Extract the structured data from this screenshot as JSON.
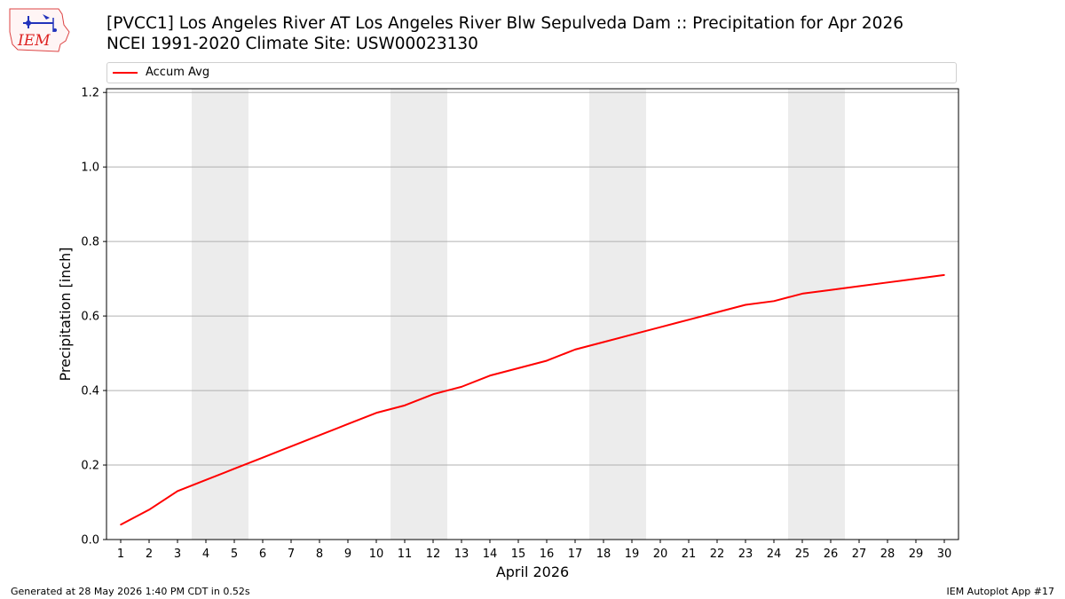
{
  "header": {
    "logo_text": "IEM",
    "title_line1": "[PVCC1] Los Angeles River  AT Los Angeles River Blw Sepulveda Dam :: Precipitation for Apr 2026",
    "title_line2": "NCEI 1991-2020 Climate Site: USW00023130"
  },
  "footer": {
    "generated": "Generated at 28 May 2026 1:40 PM CDT in 0.52s",
    "app": "IEM Autoplot App #17"
  },
  "colors": {
    "series": "#ff0000",
    "weekend_band": "#ececec",
    "grid": "#b0b0b0"
  },
  "chart_data": {
    "type": "line",
    "xlabel": "April 2026",
    "ylabel": "Precipitation [inch]",
    "xlim": [
      0.5,
      30.5
    ],
    "ylim": [
      0,
      1.21
    ],
    "yticks": [
      0.0,
      0.2,
      0.4,
      0.6,
      0.8,
      1.0,
      1.2
    ],
    "ytick_labels": [
      "0.0",
      "0.2",
      "0.4",
      "0.6",
      "0.8",
      "1.0",
      "1.2"
    ],
    "x": [
      1,
      2,
      3,
      4,
      5,
      6,
      7,
      8,
      9,
      10,
      11,
      12,
      13,
      14,
      15,
      16,
      17,
      18,
      19,
      20,
      21,
      22,
      23,
      24,
      25,
      26,
      27,
      28,
      29,
      30
    ],
    "grid": "y",
    "legend_position": "top",
    "shaded_bands": [
      [
        3.5,
        5.5
      ],
      [
        10.5,
        12.5
      ],
      [
        17.5,
        19.5
      ],
      [
        24.5,
        26.5
      ]
    ],
    "series": [
      {
        "name": "Accum Avg",
        "color": "#ff0000",
        "values": [
          0.04,
          0.08,
          0.13,
          0.16,
          0.19,
          0.22,
          0.25,
          0.28,
          0.31,
          0.34,
          0.36,
          0.39,
          0.41,
          0.44,
          0.46,
          0.48,
          0.51,
          0.53,
          0.55,
          0.57,
          0.59,
          0.61,
          0.63,
          0.64,
          0.66,
          0.67,
          0.68,
          0.69,
          0.7,
          0.71
        ]
      }
    ]
  }
}
